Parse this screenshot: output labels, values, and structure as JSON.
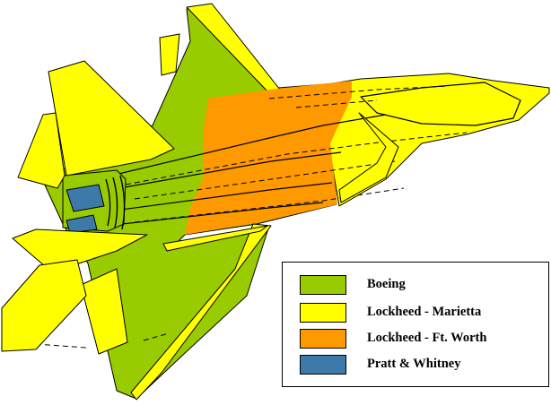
{
  "colors": {
    "boeing": "#99cc00",
    "marietta": "#ffff00",
    "ftworth": "#ff9900",
    "pratt": "#3d7aaa",
    "outline": "#000000"
  },
  "legend": {
    "items": [
      {
        "label": "Boeing",
        "color": "#99cc00"
      },
      {
        "label": "Lockheed - Marietta",
        "color": "#ffff00"
      },
      {
        "label": "Lockheed - Ft. Worth",
        "color": "#ff9900"
      },
      {
        "label": "Pratt & Whitney",
        "color": "#3d7aaa"
      }
    ]
  }
}
